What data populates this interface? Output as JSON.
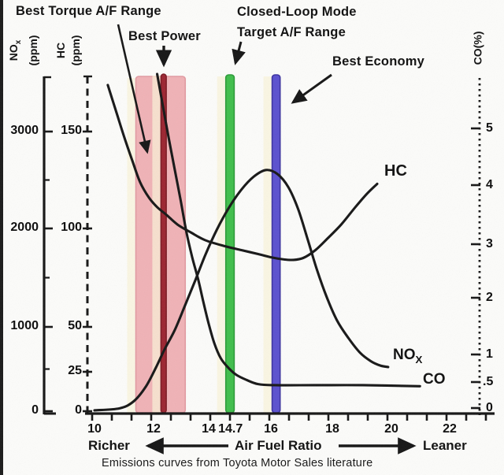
{
  "annotations": {
    "best_torque": "Best Torque A/F Range",
    "best_power": "Best Power",
    "closed_loop_line1": "Closed-Loop Mode",
    "closed_loop_line2": "Target A/F Range",
    "best_economy": "Best Economy"
  },
  "axis_titles": {
    "nox_main": "NO",
    "nox_sub": "x",
    "nox_unit": "(ppm)",
    "hc_main": "HC",
    "hc_unit": "(ppm)",
    "co": "CO(%)"
  },
  "curve_labels": {
    "hc": "HC",
    "nox_main": "NO",
    "nox_sub": "X",
    "co": "CO"
  },
  "bottom": {
    "richer": "Richer",
    "x_title": "Air Fuel Ratio",
    "leaner": "Leaner"
  },
  "caption": "Emissions curves from Toyota Motor Sales literature",
  "colors": {
    "torque_band": "#f0b2b6",
    "torque_band_edge": "#e29aa1",
    "power_line": "#9c2430",
    "power_line_edge": "#7c1a24",
    "target_line": "#3fbe4b",
    "target_line_edge": "#2b9a37",
    "economy_line": "#5a50cf",
    "economy_line_edge": "#3b32a0",
    "curve": "#161616",
    "halo": "#faf3d8"
  },
  "chart_data": {
    "type": "line",
    "title": "",
    "xlabel": "Air Fuel Ratio",
    "x_range": [
      10,
      23.5
    ],
    "grid": false,
    "axes": {
      "nox": {
        "label": "NOx (ppm)",
        "side": "left-outer",
        "style": "solid",
        "ticks": [
          {
            "v": 0,
            "t": "0"
          },
          {
            "v": 1000,
            "t": "1000"
          },
          {
            "v": 2000,
            "t": "2000"
          },
          {
            "v": 3000,
            "t": "3000"
          }
        ],
        "minor": [
          500,
          1500,
          2500
        ],
        "range": [
          0,
          3600
        ]
      },
      "hc": {
        "label": "HC (ppm)",
        "side": "left-inner",
        "style": "dashed",
        "ticks": [
          {
            "v": 0,
            "t": "0"
          },
          {
            "v": 25,
            "t": "25"
          },
          {
            "v": 50,
            "t": "50"
          },
          {
            "v": 100,
            "t": "100"
          },
          {
            "v": 150,
            "t": "150"
          }
        ],
        "minor": [],
        "range": [
          0,
          180
        ]
      },
      "co": {
        "label": "CO(%)",
        "side": "right",
        "style": "dotted",
        "ticks": [
          {
            "v": 0,
            "t": "0"
          },
          {
            "v": 0.5,
            "t": ".5"
          },
          {
            "v": 1,
            "t": "1"
          },
          {
            "v": 2,
            "t": "2"
          },
          {
            "v": 3,
            "t": "3"
          },
          {
            "v": 4,
            "t": "4"
          },
          {
            "v": 5,
            "t": "5"
          }
        ],
        "minor": [],
        "range": [
          0,
          6
        ]
      }
    },
    "x_ticks": [
      {
        "v": 10,
        "t": "10"
      },
      {
        "v": 12,
        "t": "12"
      },
      {
        "v": 14,
        "t": "14"
      },
      {
        "v": 14.7,
        "t": "14.7"
      },
      {
        "v": 16,
        "t": "16"
      },
      {
        "v": 18,
        "t": "18"
      },
      {
        "v": 20,
        "t": "20"
      },
      {
        "v": 22,
        "t": "22"
      }
    ],
    "series": [
      {
        "name": "HC",
        "axis": "hc",
        "units": "ppm",
        "points": [
          [
            10.45,
            174
          ],
          [
            10.74,
            160
          ],
          [
            11.01,
            147
          ],
          [
            11.28,
            135
          ],
          [
            11.54,
            124
          ],
          [
            11.84,
            116
          ],
          [
            12.13,
            111
          ],
          [
            12.47,
            107
          ],
          [
            12.87,
            102
          ],
          [
            13.35,
            98
          ],
          [
            13.88,
            94
          ],
          [
            14.52,
            91
          ],
          [
            15.05,
            89
          ],
          [
            15.59,
            87
          ],
          [
            16.12,
            85
          ],
          [
            16.65,
            84
          ],
          [
            17.05,
            85
          ],
          [
            17.45,
            89
          ],
          [
            17.85,
            95
          ],
          [
            18.3,
            102
          ],
          [
            18.78,
            111
          ],
          [
            19.18,
            118
          ],
          [
            19.52,
            123
          ]
        ]
      },
      {
        "name": "NOx",
        "axis": "nox",
        "units": "ppm",
        "points": [
          [
            10.0,
            10
          ],
          [
            10.85,
            34
          ],
          [
            11.33,
            118
          ],
          [
            11.73,
            287
          ],
          [
            12.07,
            507
          ],
          [
            12.39,
            727
          ],
          [
            12.77,
            963
          ],
          [
            13.14,
            1217
          ],
          [
            13.51,
            1470
          ],
          [
            13.88,
            1732
          ],
          [
            14.26,
            1986
          ],
          [
            14.65,
            2214
          ],
          [
            15.05,
            2400
          ],
          [
            15.45,
            2535
          ],
          [
            15.85,
            2603
          ],
          [
            16.22,
            2560
          ],
          [
            16.57,
            2425
          ],
          [
            16.89,
            2197
          ],
          [
            17.21,
            1876
          ],
          [
            17.5,
            1580
          ],
          [
            17.82,
            1301
          ],
          [
            18.16,
            1065
          ],
          [
            18.54,
            870
          ],
          [
            18.94,
            693
          ],
          [
            19.31,
            592
          ],
          [
            19.63,
            541
          ],
          [
            19.89,
            524
          ]
        ]
      },
      {
        "name": "CO",
        "axis": "co",
        "units": "%",
        "points": [
          [
            12.13,
            5.96
          ],
          [
            12.34,
            5.39
          ],
          [
            12.55,
            4.83
          ],
          [
            12.77,
            4.27
          ],
          [
            12.98,
            3.75
          ],
          [
            13.19,
            3.21
          ],
          [
            13.4,
            2.76
          ],
          [
            13.62,
            2.34
          ],
          [
            13.8,
            1.94
          ],
          [
            13.99,
            1.56
          ],
          [
            14.18,
            1.2
          ],
          [
            14.39,
            0.93
          ],
          [
            14.63,
            0.76
          ],
          [
            14.89,
            0.63
          ],
          [
            15.21,
            0.54
          ],
          [
            15.59,
            0.46
          ],
          [
            16.12,
            0.44
          ],
          [
            17.45,
            0.44
          ],
          [
            19.04,
            0.44
          ],
          [
            20.98,
            0.42
          ]
        ]
      }
    ],
    "bands": [
      {
        "name": "best-torque-range",
        "label": "Best Torque A/F Range",
        "afr": [
          11.4,
          13.15
        ],
        "kind": "band"
      },
      {
        "name": "best-power-line",
        "label": "Best Power",
        "afr": [
          12.27,
          12.46
        ],
        "kind": "line"
      },
      {
        "name": "closed-loop-target",
        "label": "Closed-Loop Mode Target A/F Range",
        "afr": [
          14.55,
          14.82
        ],
        "kind": "line"
      },
      {
        "name": "best-economy-line",
        "label": "Best Economy",
        "afr": [
          16.04,
          16.3
        ],
        "kind": "line"
      }
    ]
  }
}
